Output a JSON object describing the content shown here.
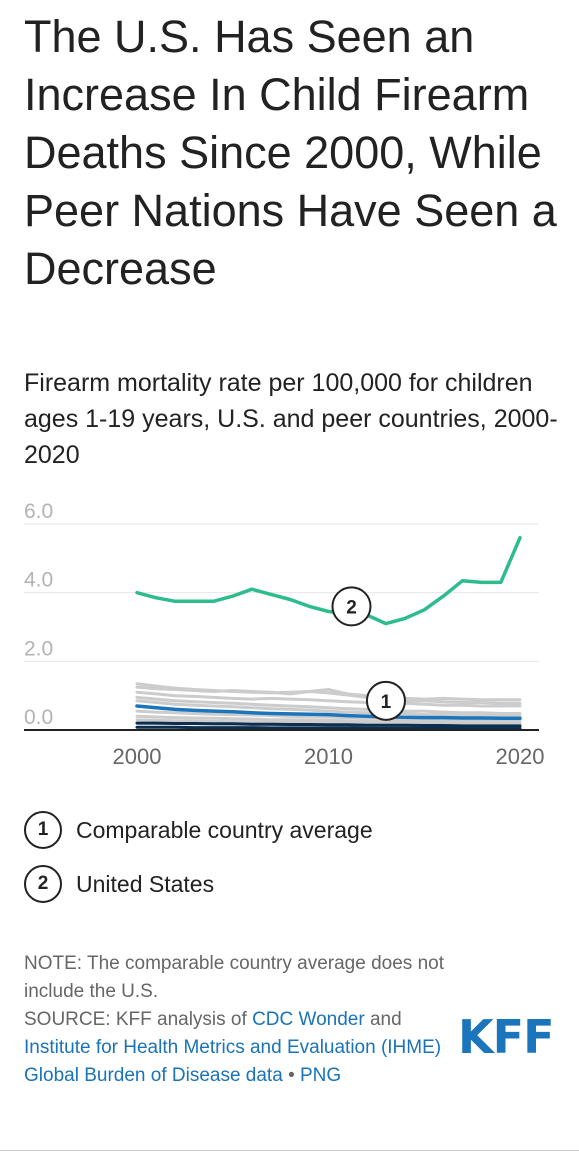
{
  "title": "The U.S. Has Seen an Increase In Child Firearm Deaths Since 2000, While Peer Nations Have Seen a Decrease",
  "subtitle": "Firearm mortality rate per 100,000 for children ages 1-19 years, U.S. and peer countries, 2000-2020",
  "legend": [
    {
      "marker": "1",
      "label": "Comparable country average"
    },
    {
      "marker": "2",
      "label": "United States"
    }
  ],
  "notes": {
    "note": "NOTE: The comparable country average does not include the U.S.",
    "source_prefix": "SOURCE: KFF analysis of",
    "link1": "CDC Wonder",
    "and": "and",
    "link2": "Institute for Health Metrics and Evaluation (IHME) Global Burden of Disease data",
    "bullet": "•",
    "png": "PNG"
  },
  "logo": "KFF",
  "colors": {
    "us": "#2ebd8a",
    "average": "#1b75bc",
    "peer": "#cccccc",
    "peer_dark": "#0d2f4f",
    "grid": "#e6e6e6",
    "axis": "#222222"
  },
  "chart_data": {
    "type": "line",
    "title": "The U.S. Has Seen an Increase In Child Firearm Deaths Since 2000, While Peer Nations Have Seen a Decrease",
    "xlabel": "",
    "ylabel": "",
    "xlim": [
      1998,
      2021
    ],
    "ylim": [
      0,
      6
    ],
    "x_ticks": [
      "2000",
      "2010",
      "2020"
    ],
    "y_ticks": [
      "6.0",
      "4.0",
      "2.0",
      "0.0"
    ],
    "x": [
      2000,
      2001,
      2002,
      2003,
      2004,
      2005,
      2006,
      2007,
      2008,
      2009,
      2010,
      2011,
      2012,
      2013,
      2014,
      2015,
      2016,
      2017,
      2018,
      2019,
      2020
    ],
    "series": [
      {
        "name": "United States",
        "marker": "2",
        "values": [
          4.0,
          3.85,
          3.75,
          3.75,
          3.75,
          3.9,
          4.1,
          3.95,
          3.8,
          3.6,
          3.45,
          3.4,
          3.35,
          3.1,
          3.25,
          3.5,
          3.9,
          4.35,
          4.3,
          4.3,
          5.6
        ]
      },
      {
        "name": "Comparable country average",
        "marker": "1",
        "values": [
          0.7,
          0.65,
          0.6,
          0.57,
          0.55,
          0.53,
          0.5,
          0.48,
          0.47,
          0.46,
          0.45,
          0.42,
          0.4,
          0.38,
          0.37,
          0.36,
          0.36,
          0.35,
          0.35,
          0.34,
          0.34
        ]
      }
    ],
    "peer_series": [
      {
        "values": [
          1.35,
          1.28,
          1.22,
          1.18,
          1.15,
          1.12,
          1.1,
          1.08,
          1.1,
          1.12,
          1.08,
          1.02,
          0.95,
          0.88,
          0.85,
          0.85,
          0.82,
          0.8,
          0.8,
          0.78,
          0.78
        ]
      },
      {
        "values": [
          1.25,
          1.2,
          1.18,
          1.15,
          1.12,
          1.15,
          1.12,
          1.1,
          1.05,
          1.12,
          1.18,
          1.05,
          1.0,
          0.95,
          0.92,
          0.9,
          0.92,
          0.9,
          0.88,
          0.88,
          0.88
        ]
      },
      {
        "values": [
          1.1,
          1.05,
          1.0,
          0.98,
          0.95,
          0.92,
          0.9,
          0.92,
          0.9,
          0.88,
          0.85,
          0.82,
          0.8,
          0.78,
          0.78,
          0.75,
          0.72,
          0.72,
          0.7,
          0.7,
          0.7
        ]
      },
      {
        "values": [
          0.95,
          0.9,
          0.85,
          0.82,
          0.8,
          0.78,
          0.75,
          0.72,
          0.7,
          0.68,
          0.65,
          0.62,
          0.6,
          0.58,
          0.55,
          0.55,
          0.52,
          0.5,
          0.5,
          0.48,
          0.48
        ]
      },
      {
        "values": [
          0.85,
          0.8,
          0.75,
          0.72,
          0.7,
          0.68,
          0.65,
          0.62,
          0.6,
          0.58,
          0.55,
          0.52,
          0.5,
          0.48,
          0.48,
          0.45,
          0.45,
          0.42,
          0.42,
          0.4,
          0.4
        ]
      },
      {
        "values": [
          0.55,
          0.52,
          0.5,
          0.48,
          0.46,
          0.45,
          0.44,
          0.42,
          0.4,
          0.38,
          0.38,
          0.36,
          0.35,
          0.34,
          0.33,
          0.32,
          0.32,
          0.3,
          0.3,
          0.3,
          0.3
        ]
      },
      {
        "values": [
          0.4,
          0.38,
          0.36,
          0.35,
          0.34,
          0.33,
          0.32,
          0.3,
          0.3,
          0.28,
          0.28,
          0.27,
          0.26,
          0.25,
          0.25,
          0.24,
          0.24,
          0.23,
          0.23,
          0.22,
          0.22
        ]
      },
      {
        "values": [
          0.3,
          0.28,
          0.27,
          0.26,
          0.25,
          0.24,
          0.23,
          0.22,
          0.22,
          0.21,
          0.2,
          0.2,
          0.19,
          0.19,
          0.18,
          0.18,
          0.17,
          0.17,
          0.17,
          0.16,
          0.16
        ]
      },
      {
        "values": [
          0.2,
          0.19,
          0.18,
          0.18,
          0.17,
          0.17,
          0.16,
          0.16,
          0.15,
          0.15,
          0.15,
          0.14,
          0.14,
          0.14,
          0.13,
          0.13,
          0.13,
          0.12,
          0.12,
          0.12,
          0.12
        ]
      }
    ],
    "peer_dark_series": [
      {
        "values": [
          0.2,
          0.2,
          0.19,
          0.19,
          0.18,
          0.18,
          0.17,
          0.17,
          0.16,
          0.16,
          0.15,
          0.15,
          0.14,
          0.14,
          0.14,
          0.13,
          0.13,
          0.12,
          0.12,
          0.12,
          0.12
        ]
      },
      {
        "values": [
          0.08,
          0.08,
          0.08,
          0.07,
          0.07,
          0.07,
          0.07,
          0.06,
          0.06,
          0.06,
          0.06,
          0.06,
          0.05,
          0.05,
          0.05,
          0.05,
          0.05,
          0.05,
          0.05,
          0.05,
          0.05
        ]
      }
    ],
    "annotations": [
      {
        "marker": "2",
        "series": "United States",
        "x": 2011.2,
        "y": 3.6
      },
      {
        "marker": "1",
        "series": "Comparable country average",
        "x": 2013,
        "y": 0.85
      }
    ],
    "grid": true
  }
}
